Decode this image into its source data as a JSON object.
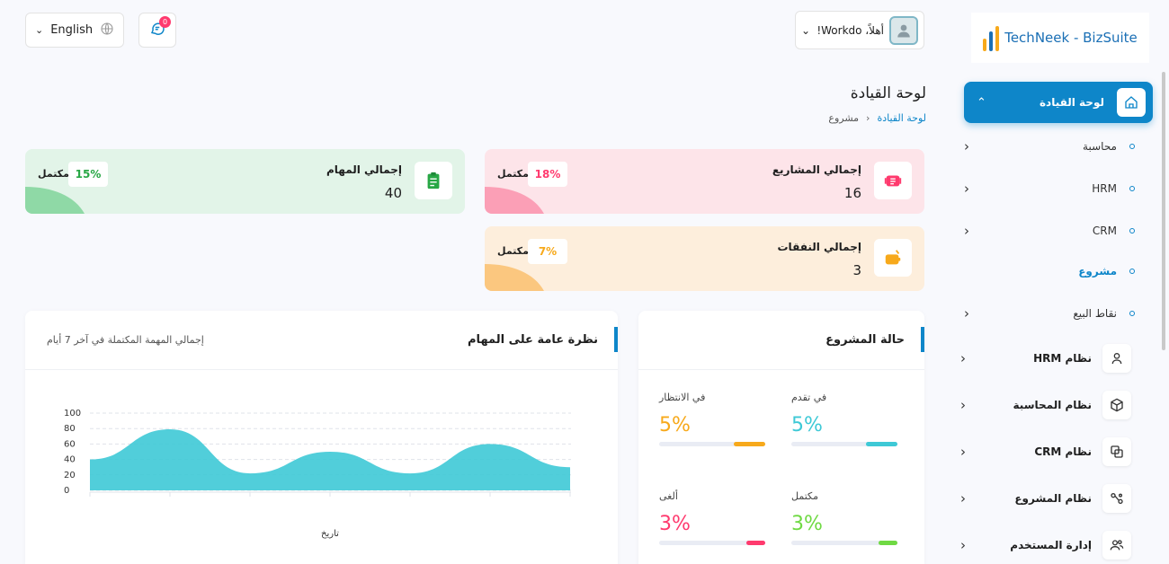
{
  "header": {
    "language": "English",
    "notifications_count": "0",
    "user_greeting": "أهلاً، Workdo!"
  },
  "sidebar": {
    "brand": "TechNeek - BizSuite",
    "active": {
      "label": "لوحة القيادة"
    },
    "sub_items": [
      {
        "label": "محاسبة"
      },
      {
        "label": "HRM"
      },
      {
        "label": "CRM"
      },
      {
        "label": "مشروع"
      },
      {
        "label": "نقاط البيع"
      }
    ],
    "items": [
      {
        "label": "نظام HRM",
        "icon": "user-icon"
      },
      {
        "label": "نظام المحاسبة",
        "icon": "box-icon"
      },
      {
        "label": "نظام CRM",
        "icon": "layers-icon"
      },
      {
        "label": "نظام المشروع",
        "icon": "share-icon"
      },
      {
        "label": "إدارة المستخدم",
        "icon": "users-icon"
      }
    ]
  },
  "page": {
    "title": "لوحة القيادة",
    "breadcrumb_home": "لوحة القيادة",
    "breadcrumb_current": "مشروع"
  },
  "stats": {
    "projects": {
      "label": "إجمالي المشاريع",
      "value": "16",
      "percent": "18%",
      "status": "مكتمل",
      "color": "#ff3a6e"
    },
    "tasks": {
      "label": "إجمالي المهام",
      "value": "40",
      "percent": "15%",
      "status": "مكتمل",
      "color": "#28a745"
    },
    "expenses": {
      "label": "إجمالي النفقات",
      "value": "3",
      "percent": "7%",
      "status": "مكتمل",
      "color": "#f7a91b"
    }
  },
  "project_status": {
    "title": "حالة المشروع",
    "items": [
      {
        "label": "في تقدم",
        "value": "5%",
        "fill": 0.3,
        "color": "#3ec9d6"
      },
      {
        "label": "في الانتظار",
        "value": "5%",
        "fill": 0.3,
        "color": "#f7a91b"
      },
      {
        "label": "مكتمل",
        "value": "3%",
        "fill": 0.18,
        "color": "#6fd943"
      },
      {
        "label": "ألغى",
        "value": "3%",
        "fill": 0.18,
        "color": "#ff3a6e"
      }
    ]
  },
  "tasks_overview": {
    "title": "نظرة عامة على المهام",
    "subtitle": "إجمالي المهمة المكتملة في آخر 7 أيام",
    "chart_data": {
      "type": "area",
      "x": [
        1,
        2,
        3,
        4,
        5,
        6,
        7
      ],
      "series": [
        {
          "values": [
            40,
            79,
            22,
            50,
            22,
            60,
            30
          ]
        }
      ],
      "xlabel": "تاريخ",
      "ylim": [
        0,
        100
      ],
      "yticks": [
        "100",
        "80",
        "60",
        "40",
        "20",
        "0"
      ],
      "grid": true,
      "color": "#3ec9d6"
    }
  }
}
